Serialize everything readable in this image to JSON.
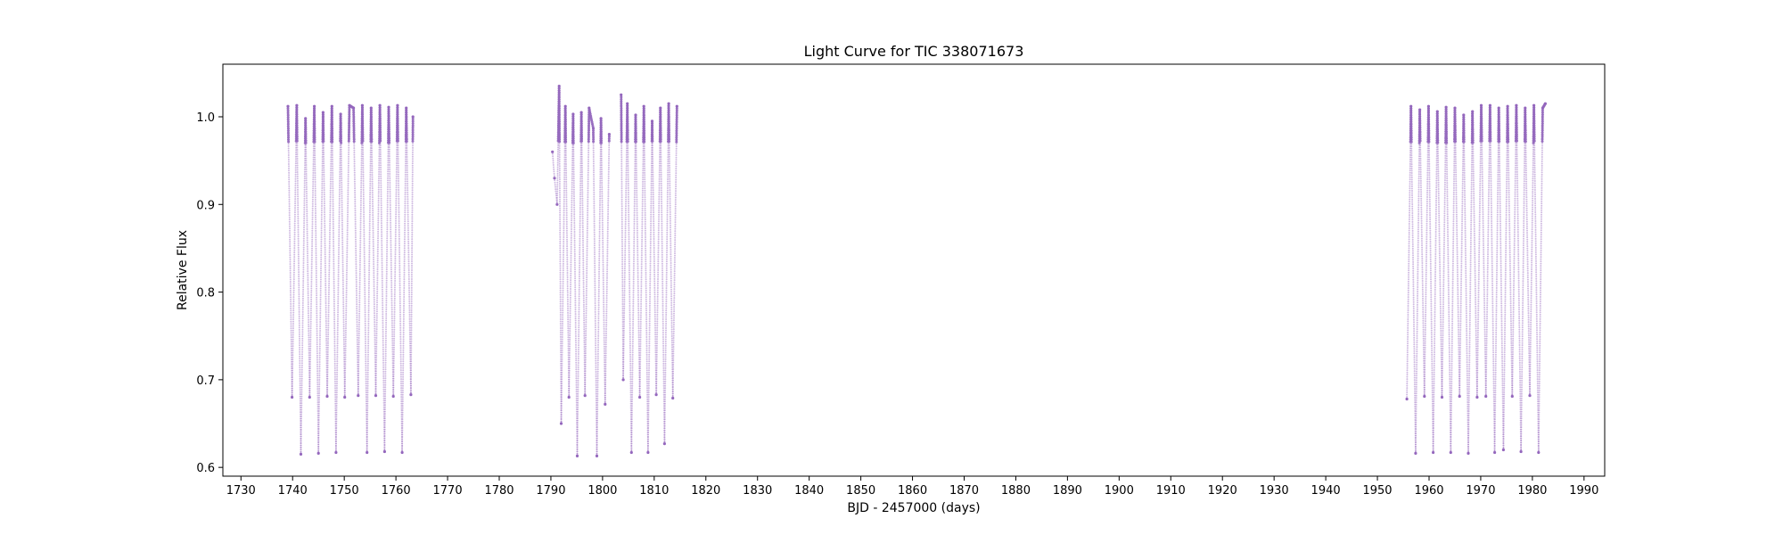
{
  "chart_data": {
    "type": "scatter",
    "title": "Light Curve for TIC 338071673",
    "xlabel": "BJD - 2457000 (days)",
    "ylabel": "Relative Flux",
    "xlim": [
      1726.5,
      1994
    ],
    "ylim": [
      0.59,
      1.06
    ],
    "xticks": [
      1730,
      1740,
      1750,
      1760,
      1770,
      1780,
      1790,
      1800,
      1810,
      1820,
      1830,
      1840,
      1850,
      1860,
      1870,
      1880,
      1890,
      1900,
      1910,
      1920,
      1930,
      1940,
      1950,
      1960,
      1970,
      1980,
      1990
    ],
    "yticks": [
      0.6,
      0.7,
      0.8,
      0.9,
      1.0
    ],
    "ytick_labels": [
      "0.6",
      "0.7",
      "0.8",
      "0.9",
      "1.0"
    ],
    "grid": false,
    "marker_color": "#9467bd",
    "segments": [
      {
        "x": [
          1739.1,
          1739.9,
          1740.8,
          1741.6,
          1742.5,
          1743.3,
          1744.2,
          1745.0,
          1745.9,
          1746.7,
          1747.6,
          1748.4,
          1749.3,
          1750.1,
          1751.0,
          1751.8,
          1752.7,
          1753.5,
          1754.4,
          1755.2,
          1756.1,
          1756.9,
          1757.8,
          1758.6,
          1759.5,
          1760.3,
          1761.2,
          1762.0,
          1762.9,
          1763.3
        ],
        "y": [
          1.012,
          0.68,
          1.013,
          0.615,
          0.998,
          0.68,
          1.012,
          0.616,
          1.005,
          0.681,
          1.012,
          0.617,
          1.003,
          0.68,
          1.013,
          1.01,
          0.682,
          1.013,
          0.617,
          1.01,
          0.682,
          1.013,
          0.618,
          1.011,
          0.681,
          1.013,
          0.617,
          1.01,
          0.683,
          1.0
        ]
      },
      {
        "x": [
          1790.3,
          1790.7,
          1791.2,
          1791.6,
          1792.0,
          1792.8,
          1793.5,
          1794.3,
          1795.1,
          1795.9,
          1796.6,
          1797.4,
          1798.2,
          1798.9,
          1799.7,
          1800.5,
          1801.3
        ],
        "y": [
          0.96,
          0.93,
          0.9,
          1.035,
          0.65,
          1.012,
          0.68,
          1.003,
          0.613,
          1.005,
          0.682,
          1.01,
          0.987,
          0.613,
          0.998,
          0.672,
          0.98
        ]
      },
      {
        "x": [
          1803.6,
          1804.0,
          1804.8,
          1805.6,
          1806.4,
          1807.2,
          1808.0,
          1808.8,
          1809.6,
          1810.4,
          1811.2,
          1812.0,
          1812.8,
          1813.6,
          1814.4
        ],
        "y": [
          1.025,
          0.7,
          1.015,
          0.617,
          1.002,
          0.68,
          1.012,
          0.617,
          0.995,
          0.683,
          1.01,
          0.627,
          1.015,
          0.679,
          1.012
        ]
      },
      {
        "x": [
          1955.7,
          1956.5,
          1957.4,
          1958.2,
          1959.1,
          1959.9,
          1960.8,
          1961.6,
          1962.5,
          1963.3,
          1964.2,
          1965.0,
          1965.9,
          1966.7,
          1967.6,
          1968.4,
          1969.3,
          1970.1,
          1971.0,
          1971.8,
          1972.7,
          1973.5,
          1974.4,
          1975.2,
          1976.1,
          1976.9,
          1977.8,
          1978.6,
          1979.5,
          1980.3,
          1981.2,
          1982.0,
          1982.5
        ],
        "y": [
          0.678,
          1.012,
          0.616,
          1.008,
          0.681,
          1.012,
          0.617,
          1.006,
          0.68,
          1.011,
          0.617,
          1.01,
          0.681,
          1.002,
          0.616,
          1.006,
          0.68,
          1.013,
          0.681,
          1.013,
          0.617,
          1.01,
          0.62,
          1.012,
          0.681,
          1.013,
          0.618,
          1.01,
          0.682,
          1.013,
          0.617,
          1.01,
          1.015
        ]
      }
    ]
  }
}
